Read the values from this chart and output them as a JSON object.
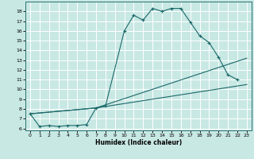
{
  "xlabel": "Humidex (Indice chaleur)",
  "background_color": "#c8e8e4",
  "grid_color": "#ffffff",
  "line_color": "#1a6868",
  "xlim": [
    -0.5,
    23.5
  ],
  "ylim": [
    5.8,
    19.0
  ],
  "xticks": [
    0,
    1,
    2,
    3,
    4,
    5,
    6,
    7,
    8,
    9,
    10,
    11,
    12,
    13,
    14,
    15,
    16,
    17,
    18,
    19,
    20,
    21,
    22,
    23
  ],
  "yticks": [
    6,
    7,
    8,
    9,
    10,
    11,
    12,
    13,
    14,
    15,
    16,
    17,
    18
  ],
  "curve1_x": [
    0,
    1,
    2,
    3,
    4,
    5,
    6,
    7,
    8,
    10,
    11,
    12,
    13,
    14,
    15,
    16,
    17,
    18,
    19,
    20,
    21,
    22
  ],
  "curve1_y": [
    7.5,
    6.2,
    6.3,
    6.2,
    6.3,
    6.3,
    6.4,
    8.1,
    8.3,
    16.0,
    17.6,
    17.1,
    18.3,
    18.0,
    18.3,
    18.3,
    16.9,
    15.5,
    14.8,
    13.3,
    11.5,
    11.0
  ],
  "curve2_x": [
    0,
    7,
    23
  ],
  "curve2_y": [
    7.5,
    8.1,
    13.2
  ],
  "curve3_x": [
    0,
    7,
    23
  ],
  "curve3_y": [
    7.5,
    8.1,
    10.5
  ]
}
